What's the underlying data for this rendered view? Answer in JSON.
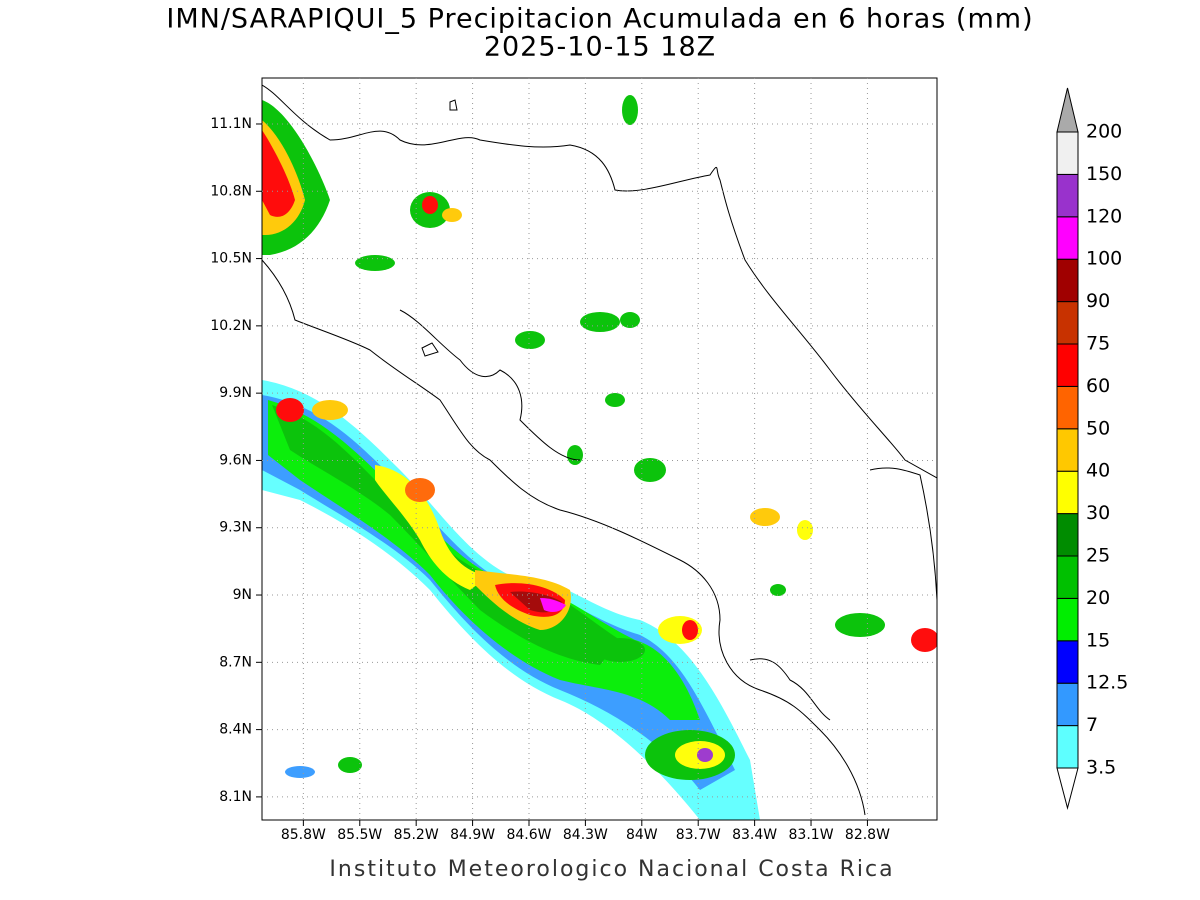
{
  "title": [
    "IMN/SARAPIQUI_5 Precipitacion Acumulada en 6 horas (mm)",
    "2025-10-15 18Z"
  ],
  "map": {
    "xlim": [
      -86.02,
      -82.43
    ],
    "ylim": [
      7.997,
      11.305
    ],
    "xticks": [
      {
        "value": -85.8,
        "label": "85.8W"
      },
      {
        "value": -85.5,
        "label": "85.5W"
      },
      {
        "value": -85.2,
        "label": "85.2W"
      },
      {
        "value": -84.9,
        "label": "84.9W"
      },
      {
        "value": -84.6,
        "label": "84.6W"
      },
      {
        "value": -84.3,
        "label": "84.3W"
      },
      {
        "value": -84,
        "label": "84W"
      },
      {
        "value": -83.7,
        "label": "83.7W"
      },
      {
        "value": -83.4,
        "label": "83.4W"
      },
      {
        "value": -83.1,
        "label": "83.1W"
      },
      {
        "value": -82.8,
        "label": "82.8W"
      }
    ],
    "yticks": [
      {
        "value": 8.1,
        "label": "8.1N"
      },
      {
        "value": 8.4,
        "label": "8.4N"
      },
      {
        "value": 8.7,
        "label": "8.7N"
      },
      {
        "value": 9,
        "label": "9N"
      },
      {
        "value": 9.3,
        "label": "9.3N"
      },
      {
        "value": 9.6,
        "label": "9.6N"
      },
      {
        "value": 9.9,
        "label": "9.9N"
      },
      {
        "value": 10.2,
        "label": "10.2N"
      },
      {
        "value": 10.5,
        "label": "10.5N"
      },
      {
        "value": 10.8,
        "label": "10.8N"
      },
      {
        "value": 11.1,
        "label": "11.1N"
      }
    ],
    "grid": true
  },
  "colorbar": {
    "levels": [
      3.5,
      7,
      12.5,
      15,
      20,
      25,
      30,
      40,
      50,
      60,
      75,
      90,
      100,
      120,
      150,
      200
    ],
    "colors": [
      "#5effff",
      "#3399ff",
      "#0000ff",
      "#00ee00",
      "#00c000",
      "#008c00",
      "#ffff00",
      "#ffc800",
      "#ff6400",
      "#ff0000",
      "#c83200",
      "#a00000",
      "#ff00ff",
      "#9932cc",
      "#f0f0f0"
    ],
    "under_color": "#ffffff",
    "over_color": "#aaaaaa"
  },
  "footer": "Instituto Meteorologico Nacional Costa Rica"
}
